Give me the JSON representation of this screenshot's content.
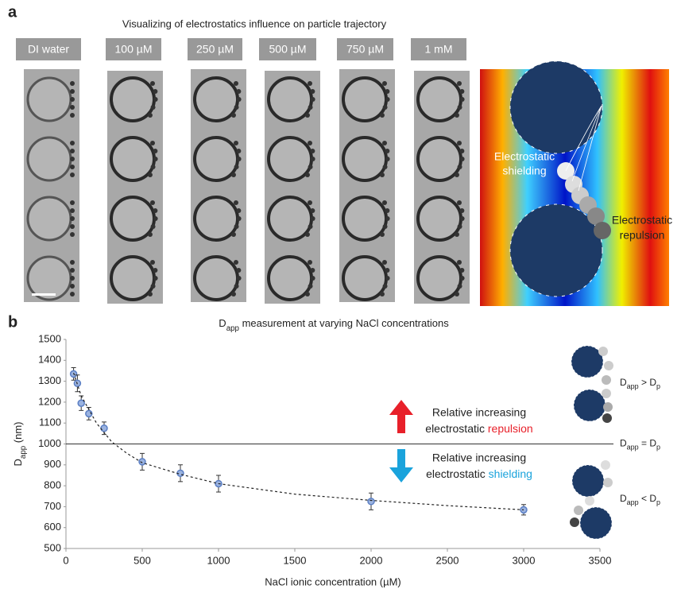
{
  "panel_a": {
    "label": "a",
    "title": "Visualizing of electrostatics influence on particle trajectory",
    "columns": [
      "DI water",
      "100 µM",
      "250 µM",
      "500 µM",
      "750 µM",
      "1 mM"
    ],
    "shielding_label": [
      "Electrostatic",
      "shielding"
    ],
    "repulsion_label": [
      "Electrostatic",
      "repulsion"
    ]
  },
  "chart_data": {
    "type": "scatter",
    "label": "b",
    "title": [
      "D",
      "app",
      " measurement at varying NaCl concentrations"
    ],
    "xlabel": "NaCl ionic concentration (µM)",
    "ylabel": [
      "D",
      "app",
      " (nm)"
    ],
    "xlim": [
      0,
      3500
    ],
    "xticks": [
      0,
      500,
      1000,
      1500,
      2000,
      2500,
      3000,
      3500
    ],
    "ylim": [
      500,
      1500
    ],
    "yticks": [
      500,
      600,
      700,
      800,
      900,
      1000,
      1100,
      1200,
      1300,
      1400,
      1500
    ],
    "grid": false,
    "series": [
      {
        "color": "#9bb3e0",
        "x": [
          50,
          75,
          100,
          150,
          250,
          500,
          750,
          1000,
          2000,
          3000
        ],
        "values": [
          1335,
          1290,
          1195,
          1145,
          1075,
          915,
          860,
          810,
          725,
          685
        ],
        "errors": [
          30,
          40,
          35,
          30,
          30,
          40,
          40,
          40,
          40,
          25
        ]
      },
      {
        "color": "#222222",
        "dashed": true,
        "x": [
          50,
          100,
          200,
          300,
          400,
          500,
          750,
          1000,
          1500,
          2000,
          2500,
          3000
        ],
        "values": [
          1340,
          1230,
          1100,
          1010,
          955,
          910,
          855,
          810,
          760,
          730,
          705,
          685
        ]
      }
    ],
    "reference_line": {
      "value": 1000,
      "label": [
        "D",
        "app",
        " = D",
        "p"
      ]
    },
    "annotations": {
      "upper": [
        "D",
        "app",
        " > D",
        "p"
      ],
      "lower": [
        "D",
        "app",
        " < D",
        "p"
      ],
      "repulsion": {
        "line1": "Relative increasing",
        "line2": [
          "electrostatic ",
          "repulsion"
        ],
        "color": "#e8202a"
      },
      "shielding": {
        "line1": "Relative increasing",
        "line2": [
          "electrostatic ",
          "shielding"
        ],
        "color": "#1aa3dc"
      }
    }
  }
}
